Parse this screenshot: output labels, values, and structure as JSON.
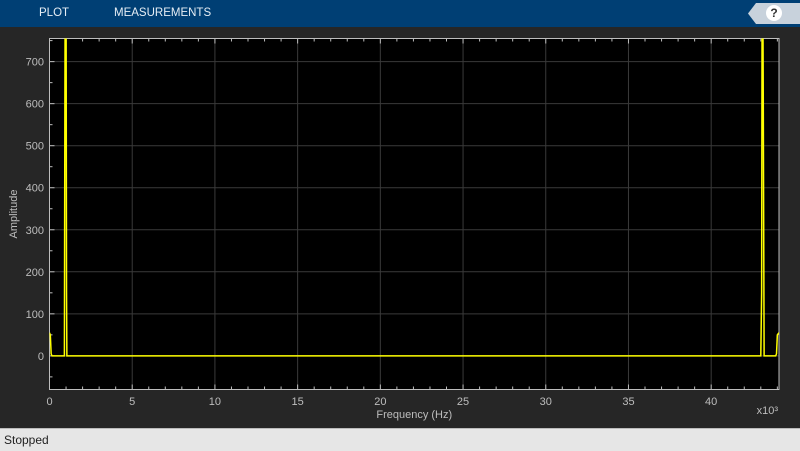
{
  "toolbar": {
    "tabs": [
      "PLOT",
      "MEASUREMENTS"
    ],
    "help_icon": "question-mark-icon"
  },
  "status": {
    "text": "Stopped"
  },
  "chart_data": {
    "type": "line",
    "xlabel": "Frequency (Hz)",
    "ylabel": "Amplitude",
    "x_multiplier_label": "x10³",
    "xlim": [
      0,
      44.1
    ],
    "ylim": [
      -80,
      755
    ],
    "xticks": [
      0,
      5,
      10,
      15,
      20,
      25,
      30,
      35,
      40
    ],
    "yticks": [
      0,
      100,
      200,
      300,
      400,
      500,
      600,
      700
    ],
    "grid": true,
    "background": "#000000",
    "line_color": "#ffff00",
    "series": [
      {
        "x": [
          0,
          0.05,
          0.1,
          0.15,
          0.9,
          0.93,
          0.95,
          1.0,
          1.03,
          1.05,
          43.0,
          43.05,
          43.08,
          43.12,
          43.15,
          43.2,
          43.9,
          43.95,
          44.0,
          44.1
        ],
        "y": [
          55,
          50,
          5,
          0,
          0,
          600,
          900,
          900,
          150,
          0,
          0,
          150,
          900,
          900,
          600,
          0,
          0,
          5,
          50,
          55
        ]
      }
    ]
  }
}
